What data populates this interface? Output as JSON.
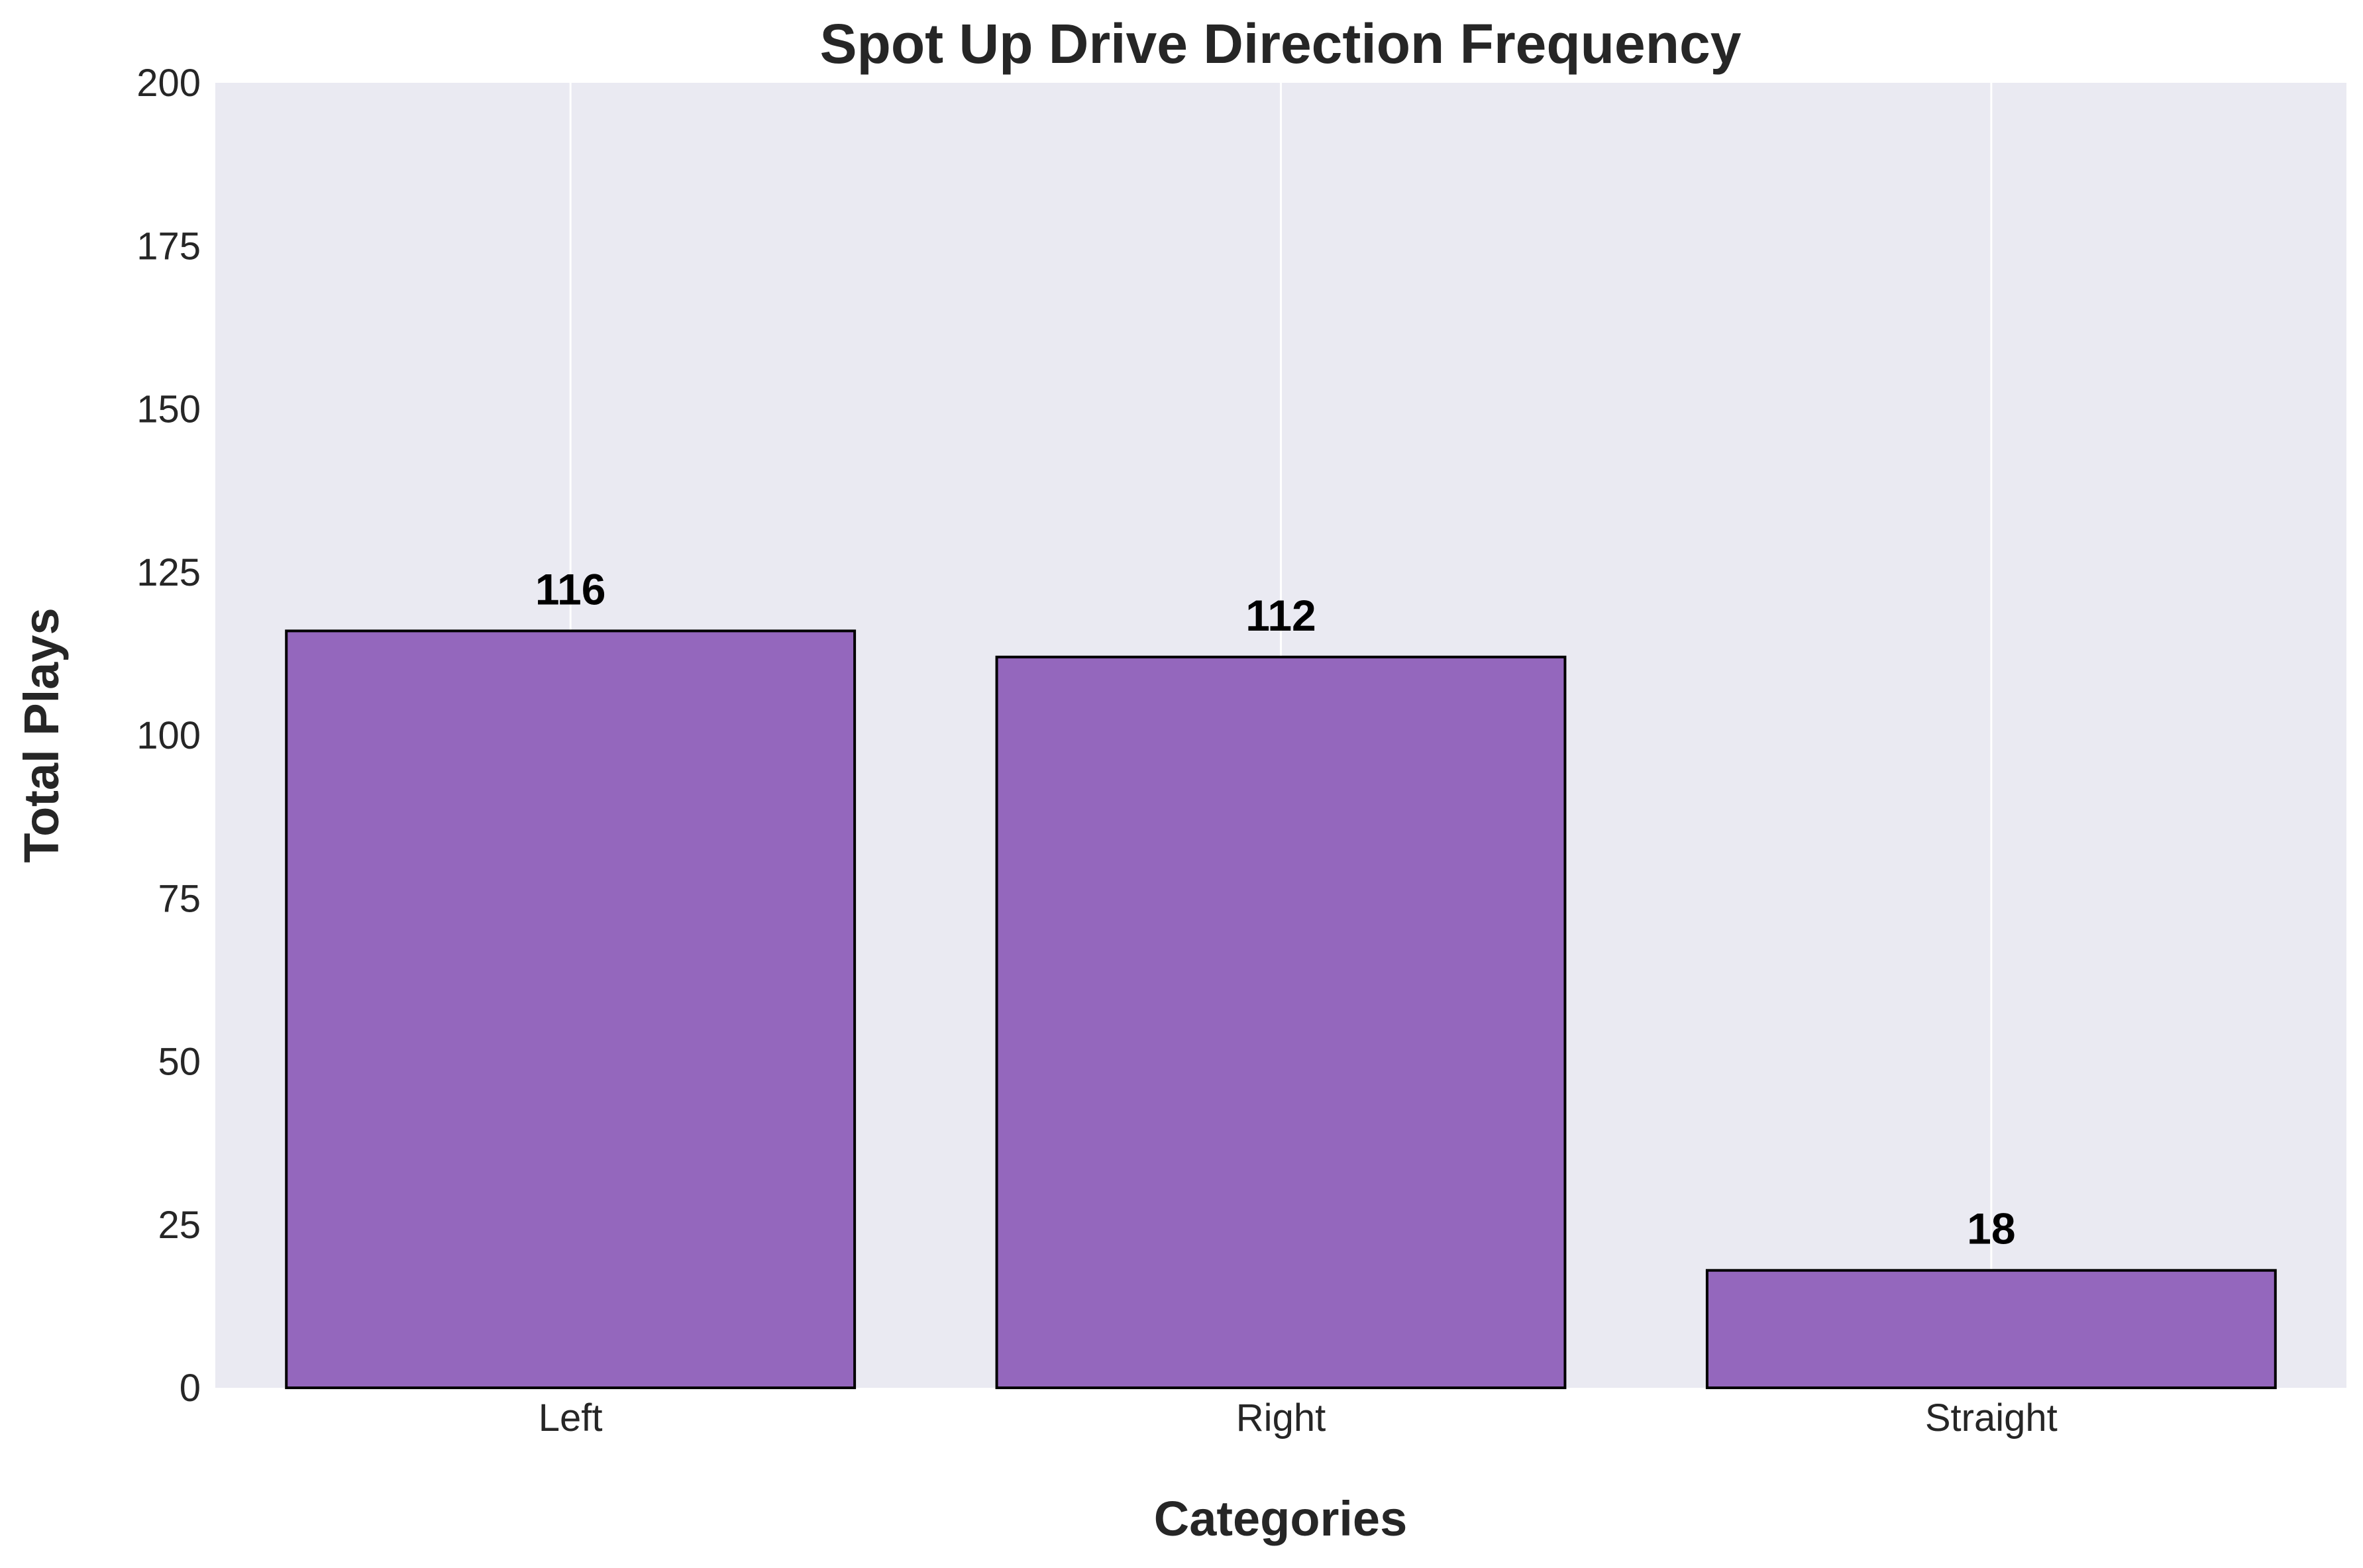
{
  "chart_data": {
    "type": "bar",
    "title": "Spot Up Drive Direction Frequency",
    "xlabel": "Categories",
    "ylabel": "Total Plays",
    "categories": [
      "Left",
      "Right",
      "Straight"
    ],
    "values": [
      116,
      112,
      18
    ],
    "data_labels": [
      "116",
      "112",
      "18"
    ],
    "ylim": [
      0,
      200
    ],
    "yticks": [
      0,
      25,
      50,
      75,
      100,
      125,
      150,
      175,
      200
    ],
    "ytick_labels": [
      "0",
      "25",
      "50",
      "75",
      "100",
      "125",
      "150",
      "175",
      "200"
    ],
    "grid": "vertical",
    "legend": "none",
    "colors": {
      "bar": "#9467bd",
      "background": "#eaeaf2",
      "edge": "#000000"
    }
  }
}
